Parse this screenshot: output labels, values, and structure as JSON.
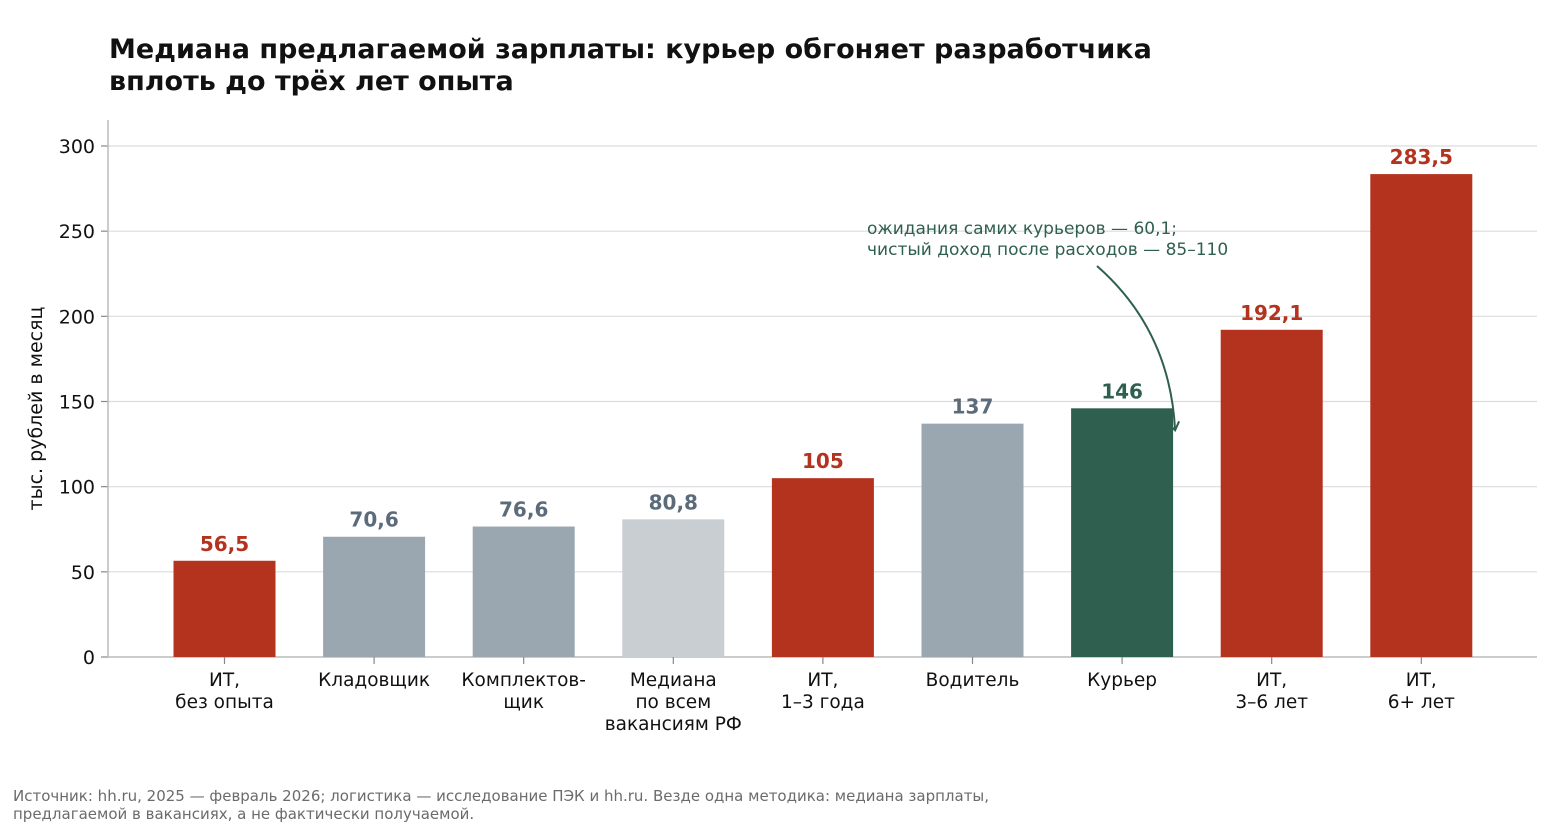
{
  "title_lines": [
    "Медиана предлагаемой зарплаты: курьер обгоняет разработчика",
    "вплоть до трёх лет опыта"
  ],
  "source_lines": [
    "Источник: hh.ru, 2025 — февраль 2026; логистика — исследование ПЭК и hh.ru. Везде одна методика: медиана зарплаты,",
    "предлагаемой в вакансиях, а не фактически получаемой."
  ],
  "colors": {
    "it": "#b3331f",
    "other": "#9ba7b0",
    "median": "#c9ced2",
    "courier": "#2f5f4f",
    "other_label": "#5c6b7a",
    "grid": "#dcdcdc",
    "axis": "#bbbbbb"
  },
  "chart_data": {
    "type": "bar",
    "ylabel": "тыс. рублей в месяц",
    "ylim": [
      0,
      315
    ],
    "yticks": [
      0,
      50,
      100,
      150,
      200,
      250,
      300
    ],
    "grid": true,
    "bars": [
      {
        "label_lines": [
          "ИТ,",
          "без опыта"
        ],
        "value": 56.5,
        "value_label": "56,5",
        "group": "it"
      },
      {
        "label_lines": [
          "Кладовщик"
        ],
        "value": 70.6,
        "value_label": "70,6",
        "group": "other"
      },
      {
        "label_lines": [
          "Комплектов-",
          "щик"
        ],
        "value": 76.6,
        "value_label": "76,6",
        "group": "other"
      },
      {
        "label_lines": [
          "Медиана",
          "по всем",
          "вакансиям РФ"
        ],
        "value": 80.8,
        "value_label": "80,8",
        "group": "median"
      },
      {
        "label_lines": [
          "ИТ,",
          "1–3 года"
        ],
        "value": 105,
        "value_label": "105",
        "group": "it"
      },
      {
        "label_lines": [
          "Водитель"
        ],
        "value": 137,
        "value_label": "137",
        "group": "other"
      },
      {
        "label_lines": [
          "Курьер"
        ],
        "value": 146,
        "value_label": "146",
        "group": "courier"
      },
      {
        "label_lines": [
          "ИТ,",
          "3–6 лет"
        ],
        "value": 192.1,
        "value_label": "192,1",
        "group": "it"
      },
      {
        "label_lines": [
          "ИТ,",
          "6+ лет"
        ],
        "value": 283.5,
        "value_label": "283,5",
        "group": "it"
      }
    ],
    "annotation": {
      "lines": [
        "ожидания самих курьеров — 60,1;",
        "чистый доход после расходов — 85–110"
      ],
      "target": "Курьер",
      "color": "#2f5f4f"
    }
  }
}
